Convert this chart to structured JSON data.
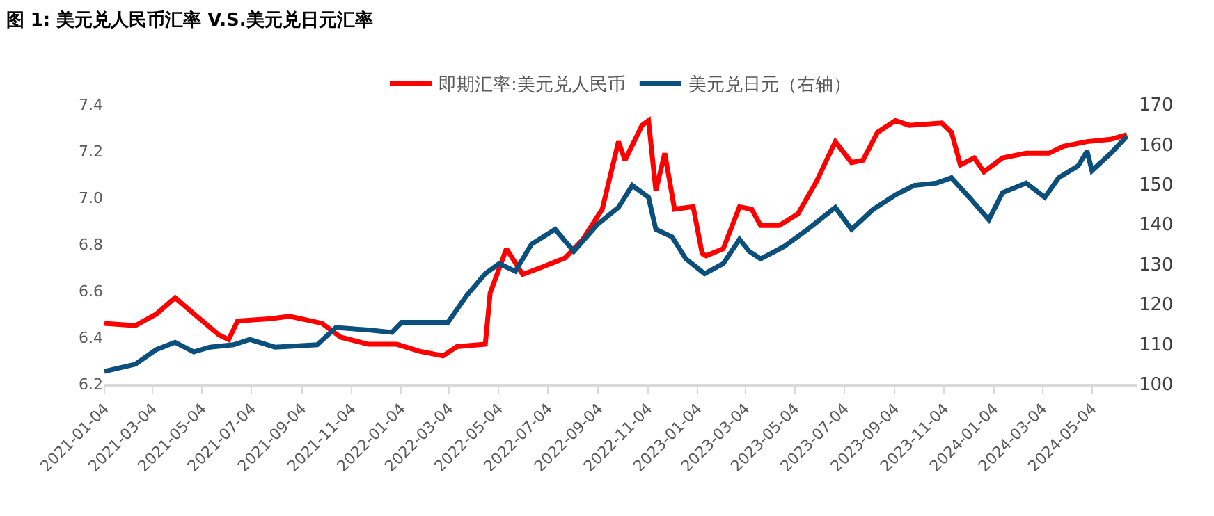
{
  "chart_data": {
    "type": "line",
    "title": "图 1: 美元兑人民币汇率 V.S.美元兑日元汇率",
    "xlim": [
      "2021-01-04",
      "2024-06-29"
    ],
    "xticks": [
      "2021-01-04",
      "2021-03-04",
      "2021-05-04",
      "2021-07-04",
      "2021-09-04",
      "2021-11-04",
      "2022-01-04",
      "2022-03-04",
      "2022-05-04",
      "2022-07-04",
      "2022-09-04",
      "2022-11-04",
      "2023-01-04",
      "2023-03-04",
      "2023-05-04",
      "2023-07-04",
      "2023-09-04",
      "2023-11-04",
      "2024-01-04",
      "2024-03-04",
      "2024-05-04"
    ],
    "ylim": [
      6.2,
      7.4
    ],
    "yticks": [
      6.2,
      6.4,
      6.6,
      6.8,
      {
        "value": 7,
        "label": "7.0"
      },
      7.2,
      7.4
    ],
    "y2lim": [
      100,
      170
    ],
    "y2ticks": [
      100,
      110,
      120,
      130,
      140,
      150,
      160,
      170
    ],
    "legend": "top",
    "series": [
      {
        "name": "即期汇率:美元兑人民币",
        "color": "#ff0000",
        "x": [
          "2021-01-04",
          "2021-02-11",
          "2021-03-09",
          "2021-04-01",
          "2021-04-21",
          "2021-05-08",
          "2021-05-25",
          "2021-06-06",
          "2021-06-17",
          "2021-07-28",
          "2021-08-20",
          "2021-09-29",
          "2021-10-22",
          "2021-11-25",
          "2021-12-30",
          "2022-01-27",
          "2022-02-25",
          "2022-03-14",
          "2022-04-18",
          "2022-04-24",
          "2022-05-14",
          "2022-06-03",
          "2022-06-26",
          "2022-07-25",
          "2022-08-16",
          "2022-09-09",
          "2022-09-29",
          "2022-10-07",
          "2022-10-28",
          "2022-11-05",
          "2022-11-14",
          "2022-11-25",
          "2022-12-07",
          "2022-12-30",
          "2023-01-10",
          "2023-01-15",
          "2023-02-05",
          "2023-02-25",
          "2023-03-12",
          "2023-03-23",
          "2023-04-15",
          "2023-05-08",
          "2023-05-31",
          "2023-06-23",
          "2023-07-13",
          "2023-07-27",
          "2023-08-14",
          "2023-09-05",
          "2023-09-22",
          "2023-11-01",
          "2023-11-13",
          "2023-11-24",
          "2023-12-11",
          "2023-12-23",
          "2024-01-15",
          "2024-02-13",
          "2024-03-12",
          "2024-03-30",
          "2024-04-28",
          "2024-05-27",
          "2024-06-16"
        ],
        "values": [
          6.46,
          6.45,
          6.5,
          6.57,
          6.51,
          6.46,
          6.41,
          6.39,
          6.47,
          6.48,
          6.49,
          6.46,
          6.4,
          6.37,
          6.37,
          6.34,
          6.32,
          6.36,
          6.37,
          6.59,
          6.78,
          6.67,
          6.7,
          6.74,
          6.82,
          6.95,
          7.24,
          7.16,
          7.31,
          7.33,
          7.03,
          7.19,
          6.95,
          6.96,
          6.76,
          6.75,
          6.78,
          6.96,
          6.95,
          6.88,
          6.88,
          6.93,
          7.07,
          7.24,
          7.15,
          7.16,
          7.28,
          7.33,
          7.31,
          7.32,
          7.28,
          7.14,
          7.17,
          7.11,
          7.17,
          7.19,
          7.19,
          7.22,
          7.24,
          7.25,
          7.27
        ]
      },
      {
        "name": "美元兑日元（右轴）",
        "color": "#0b4f7c",
        "axis": "y2",
        "x": [
          "2021-01-04",
          "2021-02-11",
          "2021-03-09",
          "2021-04-01",
          "2021-04-24",
          "2021-05-14",
          "2021-06-12",
          "2021-07-02",
          "2021-08-02",
          "2021-09-23",
          "2021-10-16",
          "2021-11-25",
          "2021-12-24",
          "2022-01-05",
          "2022-02-08",
          "2022-03-03",
          "2022-03-26",
          "2022-04-18",
          "2022-05-05",
          "2022-05-25",
          "2022-06-14",
          "2022-07-13",
          "2022-08-05",
          "2022-09-03",
          "2022-09-29",
          "2022-10-16",
          "2022-11-05",
          "2022-11-14",
          "2022-12-04",
          "2022-12-21",
          "2023-01-13",
          "2023-02-05",
          "2023-02-25",
          "2023-03-09",
          "2023-03-23",
          "2023-04-21",
          "2023-05-20",
          "2023-06-23",
          "2023-07-13",
          "2023-08-08",
          "2023-09-05",
          "2023-09-28",
          "2023-10-26",
          "2023-11-13",
          "2023-12-05",
          "2023-12-29",
          "2024-01-15",
          "2024-02-13",
          "2024-03-07",
          "2024-03-24",
          "2024-04-17",
          "2024-04-28",
          "2024-05-04",
          "2024-05-27",
          "2024-06-16"
        ],
        "values": [
          103.1,
          104.9,
          108.6,
          110.4,
          108.0,
          109.2,
          109.8,
          111.1,
          109.2,
          109.8,
          114.1,
          113.5,
          112.9,
          115.4,
          115.4,
          115.4,
          122.1,
          127.6,
          130.1,
          128.2,
          135.0,
          138.7,
          133.2,
          139.9,
          144.2,
          149.7,
          146.7,
          138.7,
          136.8,
          131.3,
          127.6,
          130.1,
          136.2,
          133.2,
          131.3,
          134.4,
          138.7,
          144.2,
          138.7,
          143.6,
          147.3,
          149.7,
          150.3,
          151.6,
          146.7,
          141.1,
          147.9,
          150.3,
          146.7,
          151.6,
          154.6,
          158.3,
          153.4,
          157.7,
          162.0
        ]
      }
    ]
  }
}
